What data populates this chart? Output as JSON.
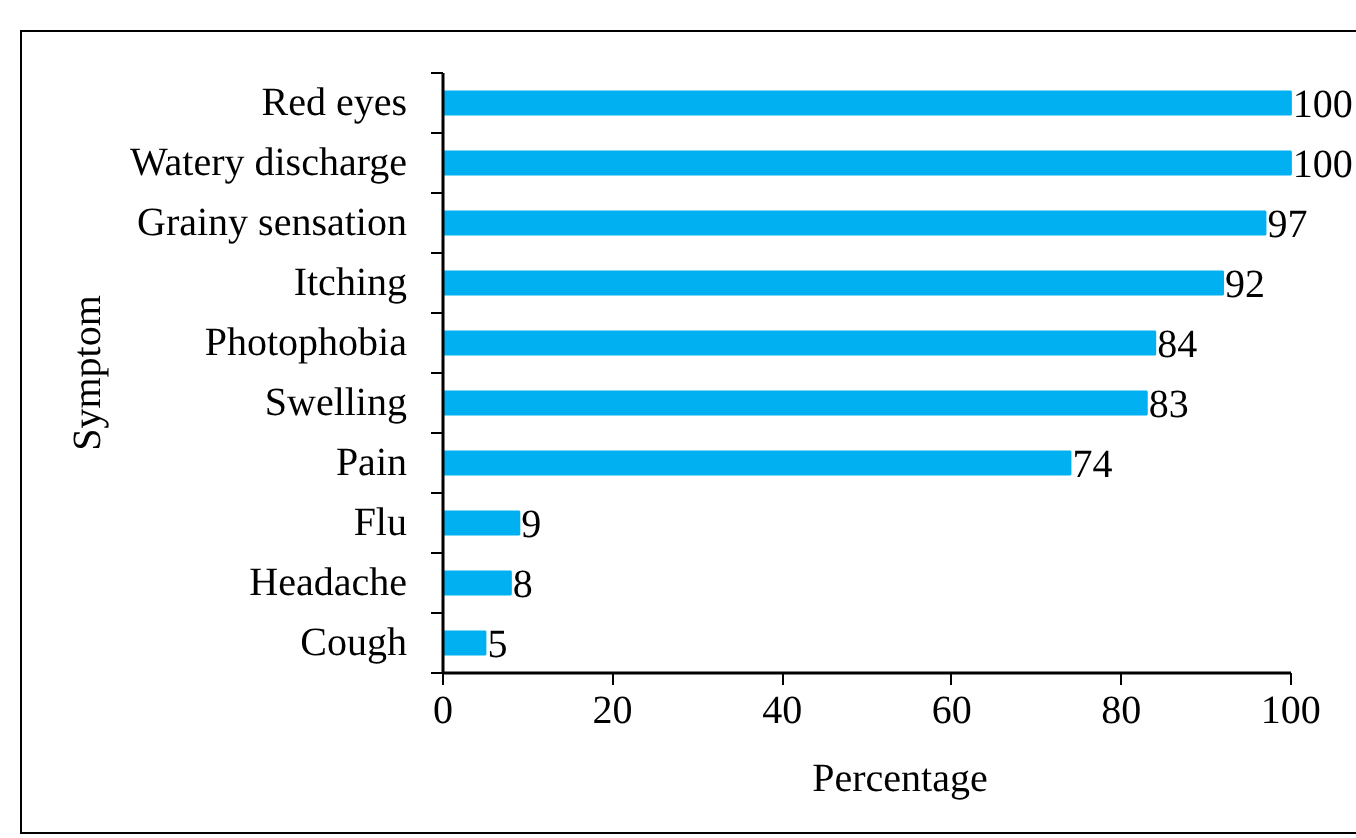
{
  "chart_data": {
    "type": "bar",
    "orientation": "horizontal",
    "categories": [
      "Red eyes",
      "Watery discharge",
      "Grainy sensation",
      "Itching",
      "Photophobia",
      "Swelling",
      "Pain",
      "Flu",
      "Headache",
      "Cough"
    ],
    "values": [
      100,
      100,
      97,
      92,
      84,
      83,
      74,
      9,
      8,
      5
    ],
    "color": "#00b0f0",
    "xlim": [
      0,
      100
    ],
    "xticks": [
      0,
      20,
      40,
      60,
      80,
      100
    ],
    "xlabel": "Percentage",
    "ylabel": "Symptom",
    "data_labels": true
  }
}
